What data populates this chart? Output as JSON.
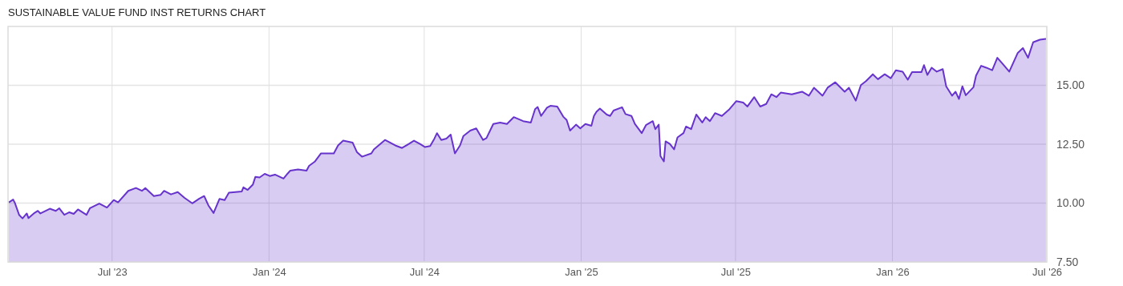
{
  "chart_data": {
    "type": "area",
    "title": "SUSTAINABLE VALUE FUND INST RETURNS CHART",
    "x": [
      "2023-03-02",
      "2023-03-07",
      "2023-03-09",
      "2023-03-14",
      "2023-03-18",
      "2023-03-23",
      "2023-03-25",
      "2023-04-01",
      "2023-04-05",
      "2023-04-08",
      "2023-04-19",
      "2023-04-26",
      "2023-04-30",
      "2023-05-06",
      "2023-05-12",
      "2023-05-17",
      "2023-05-22",
      "2023-06-01",
      "2023-06-05",
      "2023-06-16",
      "2023-06-25",
      "2023-07-03",
      "2023-07-08",
      "2023-07-20",
      "2023-07-29",
      "2023-08-05",
      "2023-08-09",
      "2023-08-19",
      "2023-08-27",
      "2023-08-31",
      "2023-09-08",
      "2023-09-16",
      "2023-09-24",
      "2023-10-03",
      "2023-10-11",
      "2023-10-17",
      "2023-10-22",
      "2023-10-28",
      "2023-11-04",
      "2023-11-10",
      "2023-11-15",
      "2023-11-30",
      "2023-12-02",
      "2023-12-07",
      "2023-12-13",
      "2023-12-16",
      "2023-12-21",
      "2023-12-27",
      "2024-01-02",
      "2024-01-08",
      "2024-01-18",
      "2024-01-23",
      "2024-01-26",
      "2024-02-04",
      "2024-02-14",
      "2024-02-17",
      "2024-02-24",
      "2024-03-02",
      "2024-03-17",
      "2024-03-22",
      "2024-03-28",
      "2024-04-08",
      "2024-04-13",
      "2024-04-19",
      "2024-04-30",
      "2024-05-03",
      "2024-05-16",
      "2024-05-28",
      "2024-06-05",
      "2024-06-13",
      "2024-06-19",
      "2024-06-26",
      "2024-07-02",
      "2024-07-08",
      "2024-07-13",
      "2024-07-16",
      "2024-07-21",
      "2024-07-27",
      "2024-08-01",
      "2024-08-06",
      "2024-08-12",
      "2024-08-16",
      "2024-08-24",
      "2024-08-31",
      "2024-09-08",
      "2024-09-12",
      "2024-09-20",
      "2024-09-28",
      "2024-10-06",
      "2024-10-14",
      "2024-10-25",
      "2024-11-03",
      "2024-11-08",
      "2024-11-11",
      "2024-11-15",
      "2024-11-22",
      "2024-11-26",
      "2024-12-04",
      "2024-12-11",
      "2024-12-15",
      "2024-12-19",
      "2024-12-26",
      "2024-12-31",
      "2025-01-06",
      "2025-01-13",
      "2025-01-16",
      "2025-01-19",
      "2025-01-23",
      "2025-01-31",
      "2025-02-04",
      "2025-02-08",
      "2025-02-18",
      "2025-02-22",
      "2025-03-01",
      "2025-03-05",
      "2025-03-13",
      "2025-03-18",
      "2025-03-26",
      "2025-03-29",
      "2025-04-02",
      "2025-04-04",
      "2025-04-08",
      "2025-04-10",
      "2025-04-15",
      "2025-04-20",
      "2025-04-24",
      "2025-05-01",
      "2025-05-04",
      "2025-05-10",
      "2025-05-16",
      "2025-05-23",
      "2025-05-27",
      "2025-06-01",
      "2025-06-07",
      "2025-06-15",
      "2025-06-24",
      "2025-07-02",
      "2025-07-10",
      "2025-07-15",
      "2025-07-23",
      "2025-07-30",
      "2025-08-06",
      "2025-08-12",
      "2025-08-18",
      "2025-08-23",
      "2025-09-05",
      "2025-09-17",
      "2025-09-25",
      "2025-10-01",
      "2025-10-11",
      "2025-10-17",
      "2025-10-26",
      "2025-11-06",
      "2025-11-11",
      "2025-11-19",
      "2025-11-25",
      "2025-12-01",
      "2025-12-09",
      "2025-12-15",
      "2025-12-23",
      "2025-12-30",
      "2026-01-05",
      "2026-01-13",
      "2026-01-19",
      "2026-01-24",
      "2026-02-04",
      "2026-02-07",
      "2026-02-11",
      "2026-02-16",
      "2026-02-22",
      "2026-03-01",
      "2026-03-05",
      "2026-03-12",
      "2026-03-16",
      "2026-03-20",
      "2026-03-24",
      "2026-03-28",
      "2026-04-06",
      "2026-04-09",
      "2026-04-15",
      "2026-04-21",
      "2026-04-28",
      "2026-05-04",
      "2026-05-10",
      "2026-05-18",
      "2026-05-28",
      "2026-06-03",
      "2026-06-09",
      "2026-06-15",
      "2026-06-23",
      "2026-06-30"
    ],
    "series": [
      {
        "color": "#6633cc",
        "values": [
          10.03,
          10.15,
          10.01,
          9.5,
          9.35,
          9.56,
          9.36,
          9.58,
          9.67,
          9.56,
          9.76,
          9.67,
          9.78,
          9.5,
          9.61,
          9.54,
          9.73,
          9.5,
          9.78,
          9.98,
          9.81,
          10.13,
          10.03,
          10.52,
          10.64,
          10.52,
          10.64,
          10.3,
          10.35,
          10.52,
          10.37,
          10.47,
          10.22,
          9.99,
          10.18,
          10.3,
          9.9,
          9.58,
          10.18,
          10.13,
          10.44,
          10.49,
          10.67,
          10.56,
          10.78,
          11.11,
          11.09,
          11.24,
          11.15,
          11.21,
          11.04,
          11.26,
          11.38,
          11.43,
          11.38,
          11.58,
          11.77,
          12.11,
          12.11,
          12.45,
          12.65,
          12.57,
          12.17,
          11.97,
          12.11,
          12.28,
          12.68,
          12.45,
          12.34,
          12.51,
          12.65,
          12.51,
          12.38,
          12.42,
          12.74,
          12.97,
          12.68,
          12.74,
          12.91,
          12.11,
          12.45,
          12.85,
          13.08,
          13.17,
          12.68,
          12.76,
          13.36,
          13.42,
          13.36,
          13.65,
          13.48,
          13.42,
          13.99,
          14.08,
          13.7,
          14.05,
          14.13,
          14.1,
          13.67,
          13.53,
          13.08,
          13.33,
          13.17,
          13.36,
          13.28,
          13.7,
          13.88,
          14.01,
          13.76,
          13.7,
          13.93,
          14.07,
          13.78,
          13.7,
          13.36,
          12.97,
          13.31,
          13.48,
          13.14,
          13.33,
          12.0,
          11.77,
          12.62,
          12.51,
          12.28,
          12.79,
          12.97,
          13.25,
          13.14,
          13.76,
          13.42,
          13.65,
          13.48,
          13.82,
          13.7,
          13.99,
          14.33,
          14.27,
          14.1,
          14.5,
          14.1,
          14.21,
          14.62,
          14.5,
          14.69,
          14.62,
          14.73,
          14.56,
          14.9,
          14.56,
          14.9,
          15.13,
          14.73,
          14.9,
          14.35,
          15.01,
          15.18,
          15.47,
          15.26,
          15.47,
          15.3,
          15.64,
          15.58,
          15.24,
          15.56,
          15.56,
          15.86,
          15.44,
          15.75,
          15.58,
          15.69,
          14.96,
          14.56,
          14.73,
          14.42,
          14.96,
          14.58,
          14.92,
          15.41,
          15.83,
          15.75,
          15.64,
          16.17,
          15.92,
          15.58,
          16.38,
          16.58,
          16.17,
          16.83,
          16.94,
          16.97
        ]
      }
    ],
    "xlim": [
      "2023-03-01",
      "2026-07-01"
    ],
    "xticks": [
      {
        "value": "2023-07-01",
        "label": "Jul '23"
      },
      {
        "value": "2024-01-01",
        "label": "Jan '24"
      },
      {
        "value": "2024-07-01",
        "label": "Jul '24"
      },
      {
        "value": "2025-01-01",
        "label": "Jan '25"
      },
      {
        "value": "2025-07-01",
        "label": "Jul '25"
      },
      {
        "value": "2026-01-01",
        "label": "Jan '26"
      },
      {
        "value": "2026-07-01",
        "label": "Jul '26"
      }
    ],
    "ylim": [
      7.5,
      17.5
    ],
    "yticks": [
      {
        "value": 7.5,
        "label": "7.50"
      },
      {
        "value": 10,
        "label": "10.00"
      },
      {
        "value": 12.5,
        "label": "12.50"
      },
      {
        "value": 15,
        "label": "15.00"
      }
    ],
    "grid": true
  }
}
